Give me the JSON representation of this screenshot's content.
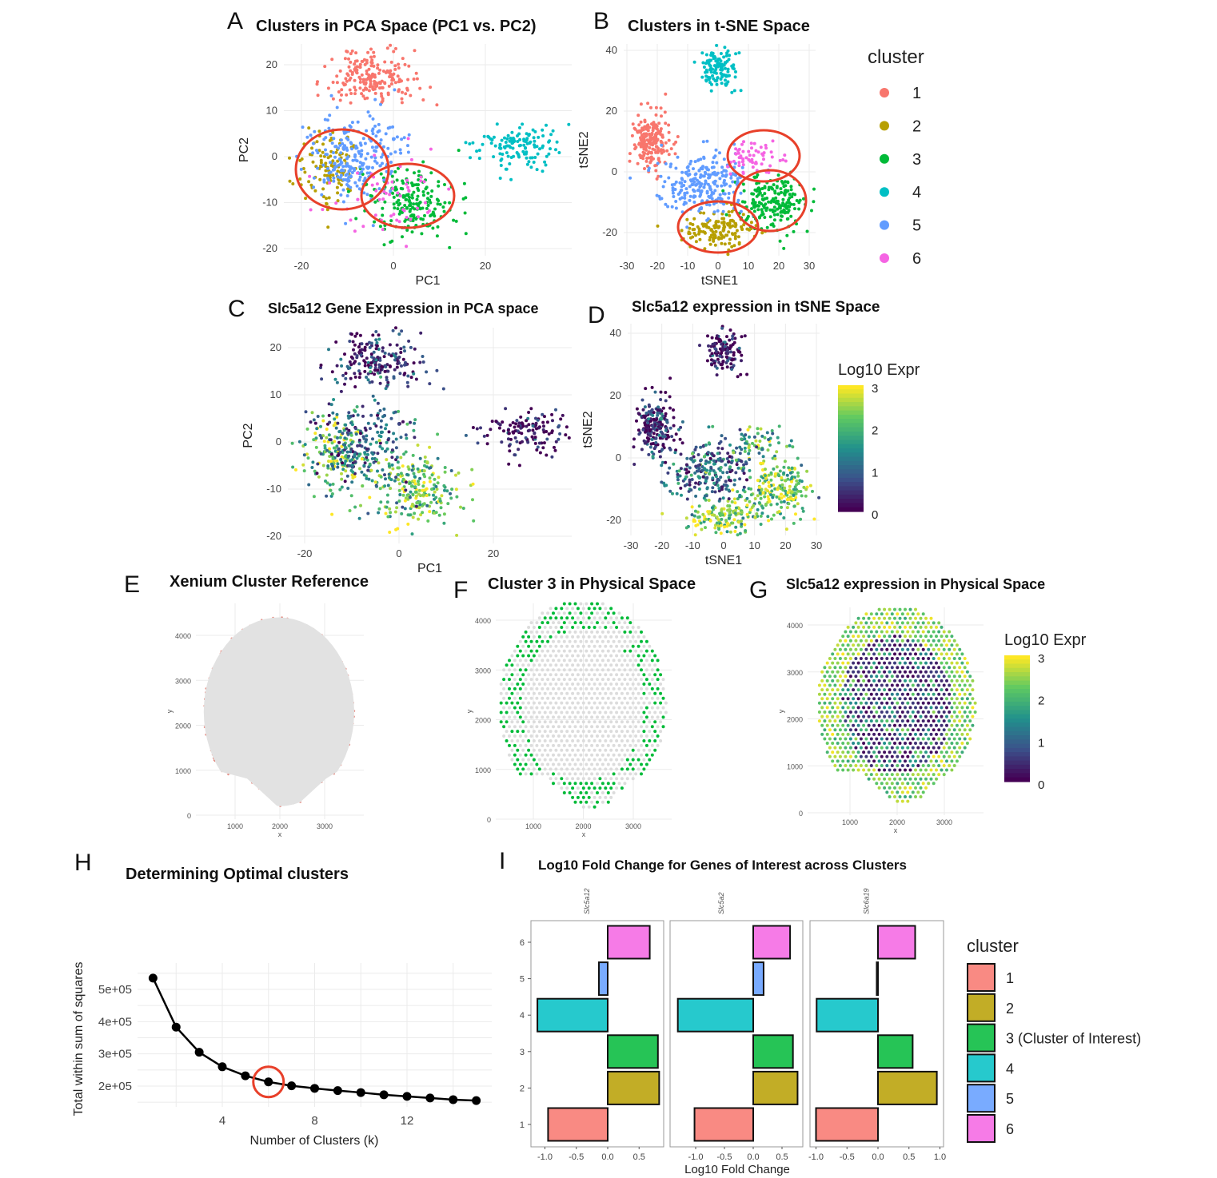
{
  "panels": {
    "A": {
      "letter": "A",
      "title": "Clusters in PCA Space (PC1 vs. PC2)"
    },
    "B": {
      "letter": "B",
      "title": "Clusters in t-SNE Space"
    },
    "C": {
      "letter": "C",
      "title": "Slc5a12 Gene Expression in PCA space"
    },
    "D": {
      "letter": "D",
      "title": "Slc5a12 expression in tSNE Space"
    },
    "E": {
      "letter": "E",
      "title": "Xenium Cluster Reference"
    },
    "F": {
      "letter": "F",
      "title": "Cluster 3 in Physical Space"
    },
    "G": {
      "letter": "G",
      "title": "Slc5a12 expression in Physical Space"
    },
    "H": {
      "letter": "H",
      "title": "Determining Optimal clusters"
    },
    "I": {
      "letter": "I",
      "title": "Log10 Fold Change for Genes of Interest across Clusters"
    }
  },
  "colors": {
    "1": "#F8766D",
    "2": "#B79F00",
    "3": "#00BA38",
    "4": "#00BFC4",
    "5": "#619CFF",
    "6": "#F564E3",
    "highlight_circle": "#E8402A",
    "tissue": "#E2E2E2",
    "reference_points": "#D23A2A"
  },
  "chart_data": [
    {
      "id": "A",
      "type": "scatter",
      "title": "Clusters in PCA Space (PC1 vs. PC2)",
      "xlabel": "PC1",
      "ylabel": "PC2",
      "xlim": [
        -24,
        39
      ],
      "ylim": [
        -22,
        24
      ],
      "xticks": [
        "-20",
        "0",
        "20"
      ],
      "yticks": [
        "20",
        "10",
        "0",
        "-10",
        "-20"
      ],
      "grid": true,
      "clusters": [
        {
          "cluster": "1",
          "center": [
            -5,
            17
          ],
          "sd": [
            5,
            3
          ],
          "n": 200
        },
        {
          "cluster": "2",
          "center": [
            -14,
            -3
          ],
          "sd": [
            3.5,
            4
          ],
          "n": 120
        },
        {
          "cluster": "3",
          "center": [
            4,
            -10
          ],
          "sd": [
            5,
            4
          ],
          "n": 200
        },
        {
          "cluster": "4",
          "center": [
            27,
            2
          ],
          "sd": [
            5,
            2.5
          ],
          "n": 130
        },
        {
          "cluster": "5",
          "center": [
            -8,
            0
          ],
          "sd": [
            5,
            5
          ],
          "n": 250
        },
        {
          "cluster": "6",
          "center": [
            0,
            -8
          ],
          "sd": [
            7,
            5
          ],
          "n": 60
        }
      ],
      "annotations": [
        "red circle around clusters 2/5",
        "red circle around clusters 3/6"
      ]
    },
    {
      "id": "B",
      "type": "scatter",
      "title": "Clusters in t-SNE Space",
      "xlabel": "tSNE1",
      "ylabel": "tSNE2",
      "xlim": [
        -31,
        32
      ],
      "ylim": [
        -27,
        42
      ],
      "xticks": [
        "-30",
        "-20",
        "-10",
        "0",
        "10",
        "20",
        "30"
      ],
      "yticks": [
        "40",
        "20",
        "0",
        "-20"
      ],
      "grid": true,
      "legend": {
        "title": "cluster",
        "entries": [
          "1",
          "2",
          "3",
          "4",
          "5",
          "6"
        ],
        "placement": "right"
      },
      "clusters": [
        {
          "cluster": "1",
          "center": [
            -22,
            10
          ],
          "sd": [
            3,
            4.5
          ],
          "n": 200
        },
        {
          "cluster": "2",
          "center": [
            0,
            -19
          ],
          "sd": [
            6,
            3.2
          ],
          "n": 150
        },
        {
          "cluster": "3",
          "center": [
            18,
            -10
          ],
          "sd": [
            5.5,
            5
          ],
          "n": 200
        },
        {
          "cluster": "4",
          "center": [
            0,
            34
          ],
          "sd": [
            2.8,
            3.2
          ],
          "n": 120
        },
        {
          "cluster": "5",
          "center": [
            -5,
            -4
          ],
          "sd": [
            7,
            5
          ],
          "n": 250
        },
        {
          "cluster": "6",
          "center": [
            12,
            5
          ],
          "sd": [
            4,
            3
          ],
          "n": 60
        }
      ],
      "annotations": [
        "red circle around cluster 6",
        "red circle around cluster 3",
        "red circle around cluster 2"
      ]
    },
    {
      "id": "C",
      "type": "scatter",
      "title": "Slc5a12 Gene Expression in PCA space",
      "xlabel": "PC1",
      "ylabel": "PC2",
      "xlim": [
        -24,
        36
      ],
      "ylim": [
        -22,
        24
      ],
      "xticks": [
        "-20",
        "0",
        "20"
      ],
      "yticks": [
        "20",
        "10",
        "0",
        "-10",
        "-20"
      ],
      "grid": true,
      "color_scale": "viridis",
      "mean_log10_expr_by_cluster": {
        "1": 0.3,
        "2": 2.4,
        "3": 2.3,
        "4": 0.1,
        "5": 1.0,
        "6": 1.8
      }
    },
    {
      "id": "D",
      "type": "scatter",
      "title": "Slc5a12 expression in tSNE Space",
      "xlabel": "tSNE1",
      "ylabel": "tSNE2",
      "xlim": [
        -31,
        31
      ],
      "ylim": [
        -25,
        42
      ],
      "xticks": [
        "-30",
        "-20",
        "-10",
        "0",
        "10",
        "20",
        "30"
      ],
      "yticks": [
        "40",
        "20",
        "0",
        "-20"
      ],
      "grid": true,
      "color_scale": "viridis",
      "colorbar": {
        "title": "Log10 Expr",
        "ticks": [
          "3",
          "2",
          "1",
          "0"
        ],
        "range": [
          0,
          3
        ]
      }
    },
    {
      "id": "E",
      "type": "scatter",
      "title": "Xenium Cluster Reference",
      "xlabel": "x",
      "ylabel": "y",
      "xticks": [
        "1000",
        "2000",
        "3000"
      ],
      "yticks": [
        "4000",
        "3000",
        "2000",
        "1000",
        "0"
      ],
      "grid": true
    },
    {
      "id": "F",
      "type": "scatter",
      "title": "Cluster 3 in Physical Space",
      "xlabel": "x",
      "ylabel": "y",
      "xticks": [
        "1000",
        "2000",
        "3000"
      ],
      "yticks": [
        "4000",
        "3000",
        "2000",
        "1000",
        "0"
      ],
      "grid": true
    },
    {
      "id": "G",
      "type": "scatter",
      "title": "Slc5a12 expression in Physical Space",
      "xlabel": "x",
      "ylabel": "y",
      "xticks": [
        "1000",
        "2000",
        "3000"
      ],
      "yticks": [
        "4000",
        "3000",
        "2000",
        "1000",
        "0"
      ],
      "grid": true,
      "color_scale": "viridis",
      "colorbar": {
        "title": "Log10 Expr",
        "ticks": [
          "3",
          "2",
          "1",
          "0"
        ],
        "range": [
          0,
          3
        ]
      }
    },
    {
      "id": "H",
      "type": "line",
      "title": "Determining Optimal clusters",
      "xlabel": "Number of Clusters (k)",
      "ylabel": "Total within sum of squares",
      "x": [
        1,
        2,
        3,
        4,
        5,
        6,
        7,
        8,
        9,
        10,
        11,
        12,
        13,
        14,
        15
      ],
      "y": [
        535000,
        383000,
        305000,
        260000,
        232000,
        213000,
        201000,
        193000,
        186000,
        180000,
        173000,
        168000,
        163000,
        158000,
        155000
      ],
      "xticks": [
        "4",
        "8",
        "12"
      ],
      "yticks": [
        "5e+05",
        "4e+05",
        "3e+05",
        "2e+05"
      ],
      "highlight": {
        "k": 6
      },
      "grid": true
    },
    {
      "id": "I",
      "type": "bar",
      "orientation": "horizontal",
      "title": "Log10 Fold Change for Genes of Interest across Clusters",
      "xlabel": "Log10 Fold Change",
      "categories": [
        "1",
        "2",
        "3",
        "4",
        "5",
        "6"
      ],
      "facets": [
        {
          "gene": "Slc5a12",
          "values": [
            -0.95,
            0.82,
            0.8,
            -1.12,
            -0.14,
            0.67
          ],
          "xticks": [
            "-1.0",
            "-0.5",
            "0.0",
            "0.5"
          ]
        },
        {
          "gene": "Slc5a2",
          "values": [
            -1.02,
            0.77,
            0.69,
            -1.31,
            0.18,
            0.64
          ],
          "xticks": [
            "-1.0",
            "-0.5",
            "0.0",
            "0.5"
          ]
        },
        {
          "gene": "Slc6a19",
          "values": [
            -1.0,
            0.95,
            0.56,
            -0.99,
            -0.02,
            0.6
          ],
          "xticks": [
            "-1.0",
            "-0.5",
            "0.0",
            "0.5",
            "1.0"
          ]
        }
      ],
      "legend": {
        "title": "cluster",
        "entries": [
          "1",
          "2",
          "3 (Cluster of Interest)",
          "4",
          "5",
          "6"
        ],
        "placement": "right"
      }
    }
  ]
}
